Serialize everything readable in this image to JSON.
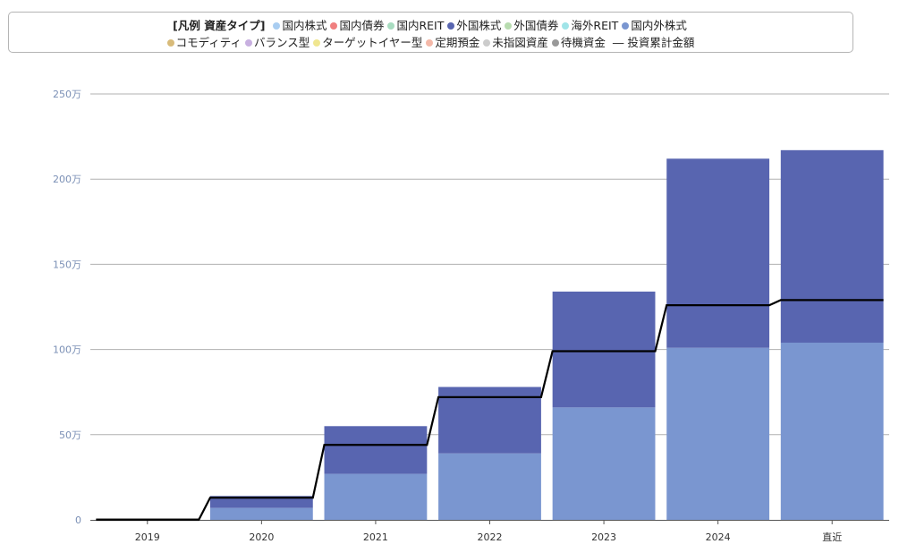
{
  "legend": {
    "title": "[凡例 資産タイプ]",
    "row1": [
      {
        "label": "国内株式",
        "color": "#a9cdf1"
      },
      {
        "label": "国内債券",
        "color": "#f08080"
      },
      {
        "label": "国内REIT",
        "color": "#a8dcc0"
      },
      {
        "label": "外国株式",
        "color": "#5865b0"
      },
      {
        "label": "外国債券",
        "color": "#b8dcb0"
      },
      {
        "label": "海外REIT",
        "color": "#a0e4e8"
      },
      {
        "label": "国内外株式",
        "color": "#7a96d0"
      }
    ],
    "row2": [
      {
        "label": "コモディティ",
        "color": "#d8bb7a"
      },
      {
        "label": "バランス型",
        "color": "#c8b0e0"
      },
      {
        "label": "ターゲットイヤー型",
        "color": "#f0e690"
      },
      {
        "label": "定期預金",
        "color": "#f4b8a8"
      },
      {
        "label": "未指図資産",
        "color": "#cccccc"
      },
      {
        "label": "待機資金",
        "color": "#999999"
      }
    ],
    "line_label": "投資累計金額",
    "line_symbol": "―"
  },
  "chart_data": {
    "type": "bar",
    "stacked": true,
    "categories": [
      "2019",
      "2020",
      "2021",
      "2022",
      "2023",
      "2024",
      "直近"
    ],
    "series": [
      {
        "name": "待機資金",
        "color": "#999999",
        "values": [
          1,
          0,
          0,
          0,
          0,
          0,
          0
        ]
      },
      {
        "name": "国内外株式",
        "color": "#7a96d0",
        "values": [
          0,
          7,
          27,
          39,
          66,
          101,
          104
        ]
      },
      {
        "name": "外国株式",
        "color": "#5865b0",
        "values": [
          0,
          7,
          28,
          39,
          68,
          111,
          113
        ]
      }
    ],
    "line": {
      "name": "投資累計金額",
      "color": "#000000",
      "values": [
        0,
        13,
        44,
        72,
        99,
        126,
        129
      ]
    },
    "y_ticks": [
      "0",
      "50万",
      "100万",
      "150万",
      "200万",
      "250万"
    ],
    "y_tick_values": [
      0,
      50,
      100,
      150,
      200,
      250
    ],
    "ylim": [
      0,
      250
    ],
    "grid": true
  }
}
